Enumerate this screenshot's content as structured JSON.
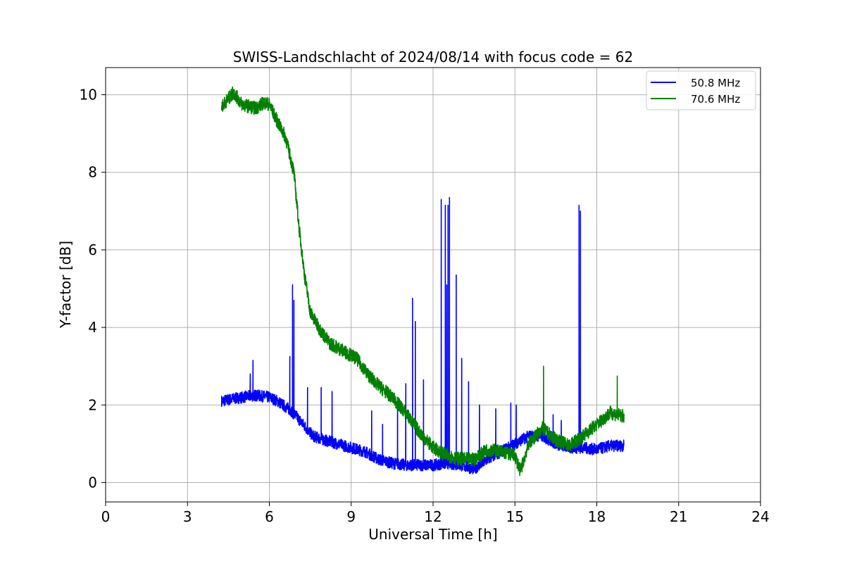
{
  "chart_data": {
    "type": "line",
    "title": "SWISS-Landschlacht of 2024/08/14 with focus code = 62",
    "xlabel": "Universal Time [h]",
    "ylabel": "Y-factor [dB]",
    "xlim": [
      0,
      24
    ],
    "ylim": [
      -0.5,
      10.7
    ],
    "xticks": [
      0,
      3,
      6,
      9,
      12,
      15,
      18,
      21,
      24
    ],
    "yticks": [
      0,
      2,
      4,
      6,
      8,
      10
    ],
    "grid": true,
    "legend_position": "upper right",
    "series": [
      {
        "name": "50.8 MHz",
        "color": "#0000ff",
        "noise": 0.3,
        "points": [
          [
            4.25,
            2.1
          ],
          [
            4.6,
            2.15
          ],
          [
            5.0,
            2.2
          ],
          [
            5.5,
            2.25
          ],
          [
            6.0,
            2.2
          ],
          [
            6.3,
            2.1
          ],
          [
            6.5,
            2.0
          ],
          [
            6.8,
            1.85
          ],
          [
            7.0,
            1.7
          ],
          [
            7.3,
            1.45
          ],
          [
            7.6,
            1.2
          ],
          [
            8.0,
            1.1
          ],
          [
            8.5,
            1.0
          ],
          [
            9.0,
            0.9
          ],
          [
            9.5,
            0.8
          ],
          [
            10.0,
            0.6
          ],
          [
            10.5,
            0.5
          ],
          [
            11.0,
            0.45
          ],
          [
            11.5,
            0.45
          ],
          [
            12.0,
            0.45
          ],
          [
            12.5,
            0.5
          ],
          [
            13.0,
            0.45
          ],
          [
            13.5,
            0.35
          ],
          [
            14.0,
            0.6
          ],
          [
            14.5,
            0.8
          ],
          [
            15.0,
            1.0
          ],
          [
            15.5,
            1.2
          ],
          [
            16.0,
            1.2
          ],
          [
            16.5,
            1.0
          ],
          [
            17.0,
            0.9
          ],
          [
            17.5,
            0.9
          ],
          [
            18.0,
            0.85
          ],
          [
            18.5,
            0.95
          ],
          [
            19.0,
            0.95
          ]
        ],
        "spikes": [
          [
            5.3,
            2.8
          ],
          [
            5.4,
            3.15
          ],
          [
            6.75,
            3.25
          ],
          [
            6.85,
            5.1
          ],
          [
            6.9,
            4.7
          ],
          [
            7.4,
            2.45
          ],
          [
            7.9,
            2.45
          ],
          [
            8.3,
            2.35
          ],
          [
            9.75,
            1.85
          ],
          [
            10.15,
            1.5
          ],
          [
            10.7,
            2.2
          ],
          [
            11.0,
            2.55
          ],
          [
            11.25,
            4.75
          ],
          [
            11.35,
            4.15
          ],
          [
            11.65,
            2.65
          ],
          [
            12.3,
            7.3
          ],
          [
            12.45,
            7.15
          ],
          [
            12.5,
            5.1
          ],
          [
            12.55,
            7.15
          ],
          [
            12.6,
            7.35
          ],
          [
            12.85,
            5.35
          ],
          [
            13.05,
            3.2
          ],
          [
            13.3,
            2.6
          ],
          [
            13.7,
            2.0
          ],
          [
            14.3,
            1.9
          ],
          [
            14.85,
            2.05
          ],
          [
            15.05,
            2.0
          ],
          [
            16.05,
            1.9
          ],
          [
            16.4,
            1.75
          ],
          [
            16.7,
            1.6
          ],
          [
            17.35,
            7.15
          ],
          [
            17.4,
            7.0
          ]
        ]
      },
      {
        "name": "70.6 MHz",
        "color": "#008000",
        "noise": 0.35,
        "points": [
          [
            4.25,
            9.7
          ],
          [
            4.5,
            9.9
          ],
          [
            4.7,
            10.05
          ],
          [
            5.0,
            9.75
          ],
          [
            5.5,
            9.65
          ],
          [
            5.8,
            9.8
          ],
          [
            6.0,
            9.75
          ],
          [
            6.3,
            9.3
          ],
          [
            6.6,
            8.9
          ],
          [
            6.9,
            8.0
          ],
          [
            7.1,
            6.5
          ],
          [
            7.3,
            5.3
          ],
          [
            7.5,
            4.4
          ],
          [
            7.8,
            4.0
          ],
          [
            8.2,
            3.6
          ],
          [
            8.7,
            3.4
          ],
          [
            9.2,
            3.2
          ],
          [
            9.6,
            2.8
          ],
          [
            10.0,
            2.5
          ],
          [
            10.5,
            2.2
          ],
          [
            11.0,
            1.8
          ],
          [
            11.5,
            1.3
          ],
          [
            12.0,
            0.9
          ],
          [
            12.5,
            0.7
          ],
          [
            13.0,
            0.6
          ],
          [
            13.5,
            0.6
          ],
          [
            14.0,
            0.85
          ],
          [
            14.5,
            0.8
          ],
          [
            15.0,
            0.7
          ],
          [
            15.2,
            0.3
          ],
          [
            15.5,
            1.0
          ],
          [
            16.0,
            1.4
          ],
          [
            16.5,
            1.1
          ],
          [
            17.0,
            0.95
          ],
          [
            17.5,
            1.2
          ],
          [
            18.0,
            1.5
          ],
          [
            18.5,
            1.8
          ],
          [
            19.0,
            1.7
          ]
        ],
        "spikes": [
          [
            4.65,
            10.2
          ],
          [
            16.05,
            3.0
          ],
          [
            18.75,
            2.75
          ]
        ]
      }
    ]
  }
}
